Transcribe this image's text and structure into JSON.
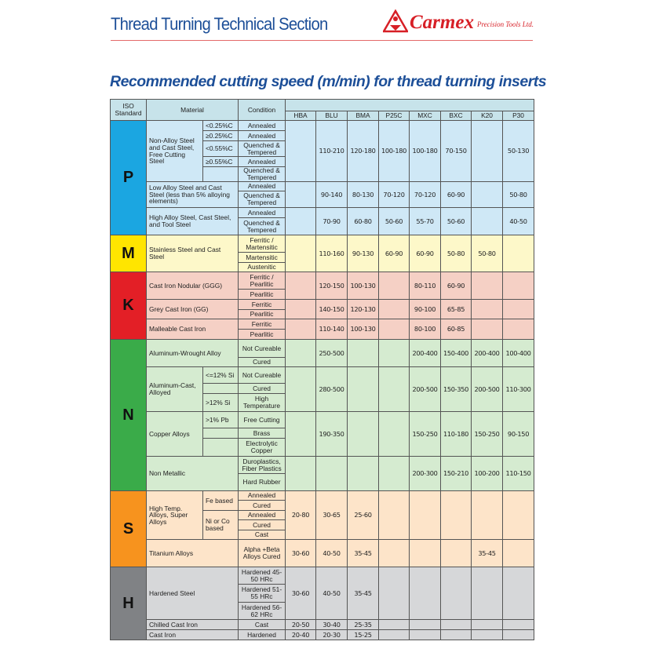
{
  "header": {
    "section_title": "Thread Turning Technical Section",
    "brand": "Carmex",
    "brand_sub": "Precision Tools Ltd.",
    "brand_color": "#d71f26",
    "title_color": "#1d4f98"
  },
  "title": "Recommended cutting speed (m/min) for thread turning inserts",
  "table": {
    "col_headers": {
      "iso": "ISO Standard",
      "material": "Material",
      "condition": "Condition",
      "grades": [
        "HBA",
        "BLU",
        "BMA",
        "P25C",
        "MXC",
        "BXC",
        "K20",
        "P30"
      ]
    },
    "groups": [
      {
        "iso": "P",
        "color": "#1ba6e1",
        "bg": "#cfe8f6",
        "text_color": "#111111",
        "materials": [
          {
            "name": "Non-Alloy Steel and Cast Steel, Free Cutting Steel",
            "subs": [
              {
                "label": "<0.25%C",
                "conditions": [
                  "Annealed"
                ]
              },
              {
                "label": "≥0.25%C",
                "conditions": [
                  "Annealed"
                ]
              },
              {
                "label": "<0.55%C",
                "conditions": [
                  "Quenched & Tempered"
                ]
              },
              {
                "label": "≥0.55%C",
                "conditions": [
                  "Annealed"
                ]
              },
              {
                "label": "",
                "conditions": [
                  "Quenched & Tempered"
                ]
              }
            ],
            "values": [
              "",
              "110-210",
              "120-180",
              "100-180",
              "100-180",
              "70-150",
              "",
              "50-130"
            ]
          },
          {
            "name": "Low Alloy Steel and Cast Steel (less than 5% alloying elements)",
            "conditions": [
              "Annealed",
              "Quenched & Tempered"
            ],
            "values": [
              "",
              "90-140",
              "80-130",
              "70-120",
              "70-120",
              "60-90",
              "",
              "50-80"
            ]
          },
          {
            "name": "High Alloy Steel, Cast Steel, and Tool Steel",
            "conditions": [
              "Annealed",
              "Quenched & Tempered"
            ],
            "values": [
              "",
              "70-90",
              "60-80",
              "50-60",
              "55-70",
              "50-60",
              "",
              "40-50"
            ]
          }
        ]
      },
      {
        "iso": "M",
        "color": "#ffe500",
        "bg": "#fdf8c9",
        "text_color": "#111111",
        "materials": [
          {
            "name": "Stainless Steel and Cast Steel",
            "conditions": [
              "Ferritic / Martensitic",
              "Martensitic",
              "Austenitic"
            ],
            "values": [
              "",
              "110-160",
              "90-130",
              "60-90",
              "60-90",
              "50-80",
              "50-80",
              ""
            ]
          }
        ]
      },
      {
        "iso": "K",
        "color": "#e31f26",
        "bg": "#f5d0c5",
        "text_color": "#111111",
        "materials": [
          {
            "name": "Cast Iron Nodular (GGG)",
            "conditions": [
              "Ferritic / Pearlitic",
              "Pearlitic"
            ],
            "values": [
              "",
              "120-150",
              "100-130",
              "",
              "80-110",
              "60-90",
              "",
              ""
            ]
          },
          {
            "name": "Grey Cast Iron (GG)",
            "conditions": [
              "Ferritic",
              "Pearlitic"
            ],
            "values": [
              "",
              "140-150",
              "120-130",
              "",
              "90-100",
              "65-85",
              "",
              ""
            ]
          },
          {
            "name": "Malleable Cast Iron",
            "conditions": [
              "Ferritic",
              "Pearlitic"
            ],
            "values": [
              "",
              "110-140",
              "100-130",
              "",
              "80-100",
              "60-85",
              "",
              ""
            ]
          }
        ]
      },
      {
        "iso": "N",
        "color": "#3aab49",
        "bg": "#d5ebd0",
        "text_color": "#111111",
        "materials": [
          {
            "name": "Aluminum-Wrought Alloy",
            "conditions": [
              "Not Cureable",
              "Cured"
            ],
            "values": [
              "",
              "250-500",
              "",
              "",
              "200-400",
              "150-400",
              "200-400",
              "100-400"
            ]
          },
          {
            "name": "Aluminum-Cast, Alloyed",
            "subs": [
              {
                "label": "<=12% Si",
                "conditions": [
                  "Not Cureable"
                ]
              },
              {
                "label": "",
                "conditions": [
                  "Cured"
                ]
              },
              {
                "label": ">12% Si",
                "conditions": [
                  "High Temperature"
                ]
              }
            ],
            "values": [
              "",
              "280-500",
              "",
              "",
              "200-500",
              "150-350",
              "200-500",
              "110-300"
            ]
          },
          {
            "name": "Copper Alloys",
            "subs": [
              {
                "label": ">1% Pb",
                "conditions": [
                  "Free Cutting"
                ]
              },
              {
                "label": "",
                "conditions": [
                  "Brass"
                ]
              },
              {
                "label": "",
                "conditions": [
                  "Electrolytic Copper"
                ]
              }
            ],
            "values": [
              "",
              "190-350",
              "",
              "",
              "150-250",
              "110-180",
              "150-250",
              "90-150"
            ]
          },
          {
            "name": "Non Metallic",
            "conditions": [
              "Duroplastics, Fiber Plastics",
              "Hard Rubber"
            ],
            "values": [
              "",
              "",
              "",
              "",
              "200-300",
              "150-210",
              "100-200",
              "110-150"
            ]
          }
        ]
      },
      {
        "iso": "S",
        "color": "#f7931e",
        "bg": "#fde4c9",
        "text_color": "#111111",
        "materials": [
          {
            "name": "High Temp. Alloys, Super Alloys",
            "subs": [
              {
                "label": "Fe based",
                "conditions": [
                  "Annealed",
                  "Cured"
                ]
              },
              {
                "label": "Ni or Co based",
                "conditions": [
                  "Annealed",
                  "Cured",
                  "Cast"
                ]
              }
            ],
            "values": [
              "20-80",
              "30-65",
              "25-60",
              "",
              "",
              "",
              "",
              ""
            ]
          },
          {
            "name": "Titanium Alloys",
            "conditions": [
              "Alpha +Beta Alloys Cured"
            ],
            "values": [
              "30-60",
              "40-50",
              "35-45",
              "",
              "",
              "",
              "35-45",
              ""
            ]
          }
        ]
      },
      {
        "iso": "H",
        "color": "#808285",
        "bg": "#d6d7d9",
        "text_color": "#111111",
        "materials": [
          {
            "name": "Hardened Steel",
            "conditions": [
              "Hardened 45-50 HRc",
              "Hardened 51-55 HRc",
              "Hardened 56-62 HRc"
            ],
            "values": [
              "30-60",
              "40-50",
              "35-45",
              "",
              "",
              "",
              "",
              ""
            ]
          },
          {
            "name": "Chilled Cast Iron",
            "conditions": [
              "Cast"
            ],
            "values": [
              "20-50",
              "30-40",
              "25-35",
              "",
              "",
              "",
              "",
              ""
            ]
          },
          {
            "name": "Cast Iron",
            "conditions": [
              "Hardened"
            ],
            "values": [
              "20-40",
              "20-30",
              "15-25",
              "",
              "",
              "",
              "",
              ""
            ]
          }
        ]
      }
    ]
  }
}
